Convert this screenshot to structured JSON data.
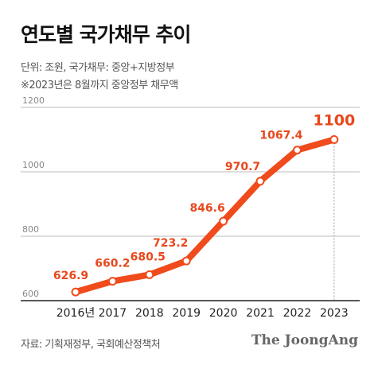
{
  "header": {
    "title": "연도별 국가채무 추이",
    "unit_note": "단위: 조원, 국가채무: 중앙+지방정부",
    "note": "※2023년은 8월까지 중앙정부 채무액"
  },
  "footer": {
    "source": "자료: 기획재정부, 국회예산정책처",
    "logo": "The JoongAng"
  },
  "colors": {
    "line": "#f04b1c",
    "labels": "#e8481c",
    "grid": "#bbbbbb",
    "axis": "#222222"
  },
  "chart_data": {
    "type": "line",
    "categories": [
      "2016년",
      "2017",
      "2018",
      "2019",
      "2020",
      "2021",
      "2022",
      "2023"
    ],
    "values": [
      626.9,
      660.2,
      680.5,
      723.2,
      846.6,
      970.7,
      1067.4,
      1100
    ],
    "data_labels": [
      "626.9",
      "660.2",
      "680.5",
      "723.2",
      "846.6",
      "970.7",
      "1067.4",
      "1100"
    ],
    "ylim": [
      600,
      1200
    ],
    "yticks": [
      600,
      800,
      1000,
      1200
    ],
    "ytick_labels": [
      "600",
      "800",
      "1000",
      "1200"
    ],
    "grid": true
  }
}
